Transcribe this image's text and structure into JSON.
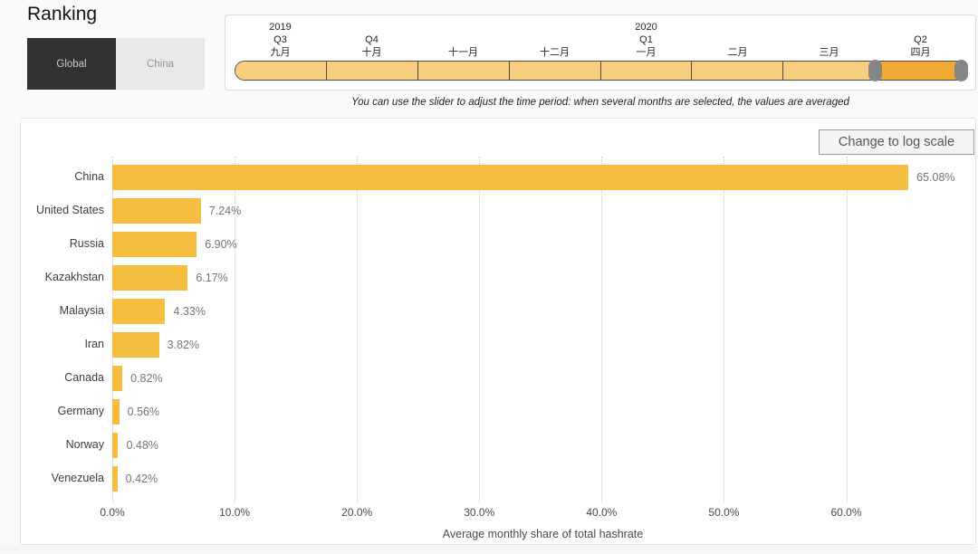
{
  "header": {
    "title": "Ranking",
    "toggle": {
      "global_label": "Global",
      "china_label": "China",
      "active": "Global"
    }
  },
  "slider": {
    "hint": "You can use the slider to adjust the time period: when several months are selected, the values are averaged",
    "months": [
      {
        "year": "2019",
        "quarter": "Q3",
        "month": "九月",
        "selected": false
      },
      {
        "year": "",
        "quarter": "Q4",
        "month": "十月",
        "selected": false
      },
      {
        "year": "",
        "quarter": "",
        "month": "十一月",
        "selected": false
      },
      {
        "year": "",
        "quarter": "",
        "month": "十二月",
        "selected": false
      },
      {
        "year": "2020",
        "quarter": "Q1",
        "month": "一月",
        "selected": false
      },
      {
        "year": "",
        "quarter": "",
        "month": "二月",
        "selected": false
      },
      {
        "year": "",
        "quarter": "",
        "month": "三月",
        "selected": false
      },
      {
        "year": "",
        "quarter": "Q2",
        "month": "四月",
        "selected": true
      }
    ]
  },
  "toolbar": {
    "log_scale_label": "Change to log scale"
  },
  "chart_data": {
    "type": "bar",
    "orientation": "horizontal",
    "title": "Ranking",
    "categories": [
      "China",
      "United States",
      "Russia",
      "Kazakhstan",
      "Malaysia",
      "Iran",
      "Canada",
      "Germany",
      "Norway",
      "Venezuela"
    ],
    "values": [
      65.08,
      7.24,
      6.9,
      6.17,
      4.33,
      3.82,
      0.82,
      0.56,
      0.48,
      0.42
    ],
    "value_labels": [
      "65.08%",
      "7.24%",
      "6.90%",
      "6.17%",
      "4.33%",
      "3.82%",
      "0.82%",
      "0.56%",
      "0.48%",
      "0.42%"
    ],
    "xlabel": "Average monthly share of total hashrate",
    "xticks": [
      "0.0%",
      "10.0%",
      "20.0%",
      "30.0%",
      "40.0%",
      "50.0%",
      "60.0%"
    ],
    "xtick_values": [
      0,
      10,
      20,
      30,
      40,
      50,
      60
    ],
    "xlim": [
      0,
      70.4
    ],
    "grid": "dotted-vertical",
    "legend": "none",
    "bar_color": "#f5be41",
    "slider_selected_color": "#f0a935",
    "slider_unselected_color": "#f7ce7e"
  }
}
